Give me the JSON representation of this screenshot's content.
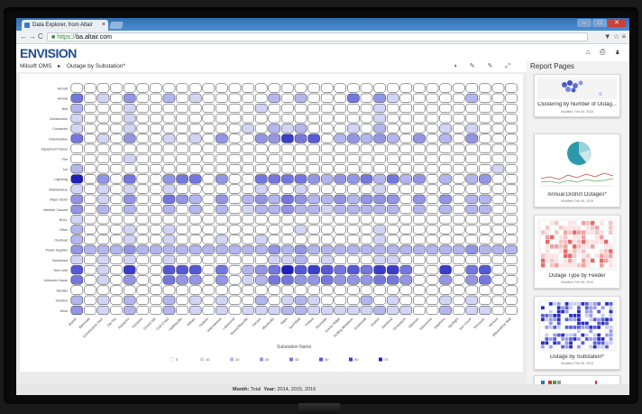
{
  "browser": {
    "tab_title": "Data Explorer, from Altair",
    "tab_close": "×",
    "url_scheme": "https://",
    "url_host": "ba.altair.com",
    "nav_back": "←",
    "nav_forward": "→",
    "nav_reload": "C",
    "addr_icons": "▼ ☆ ≡",
    "win_min": "–",
    "win_max": "□",
    "win_close": "✕"
  },
  "app": {
    "logo": "ENVISION",
    "header_icons": "⌂ ⎙ ♟"
  },
  "breadcrumb": {
    "root": "Milsoft OMS",
    "sep": "▸",
    "page": "Outage by Substation*"
  },
  "toolbar": {
    "icons": "◑ ✎ ✎ ⤢"
  },
  "chart": {
    "xlabel": "Substation Name",
    "rows": [
      "Aircraft",
      "Animal",
      "Bird",
      "Construction",
      "Contractor",
      "Deterioration",
      "Equipment Failure",
      "Fire",
      "Ice",
      "Lightning",
      "Maintenance",
      "Major Storm",
      "Member Caused",
      "NULL",
      "Other",
      "Overload",
      "Power Supplier",
      "Scheduled",
      "Tree Limb",
      "Unknown Cause",
      "Vandals",
      "Vehicles",
      "Wind"
    ],
    "cols": [
      "Baxter",
      "Bermuda",
      "Cornerstone Dam",
      "Del Rio",
      "Eastpoint",
      "Eubanks",
      "Grand Isle",
      "Gulf Coast",
      "Hallettsville",
      "Halsey",
      "Hudson",
      "International",
      "Lakewood",
      "Nunez/Maxville",
      "Horace",
      "Monticello",
      "Napa",
      "Northfield",
      "Pollard",
      "Riverside",
      "Rocky Ridge",
      "Rolling Meadows",
      "Rosebudd",
      "Ruston",
      "Sandoval",
      "Shreveport",
      "Silverton",
      "Slemmons",
      "Stephens",
      "Spotlight",
      "Sun Cover",
      "Tennyson",
      "Ventura",
      "Wauwatosa Mall"
    ],
    "legend": [
      "0",
      "10",
      "20",
      "30",
      "40",
      "50",
      "60",
      "70"
    ],
    "colors": [
      "#ffffff",
      "#d3d5f5",
      "#b4b7ee",
      "#9396e4",
      "#7478de",
      "#5559d6",
      "#3a3ecb",
      "#1d20bf"
    ]
  },
  "chart_data": {
    "type": "heatmap",
    "title": "Outage by Substation*",
    "xlabel": "Substation Name",
    "ylabel": "",
    "color_scale": [
      0,
      70
    ],
    "values": [
      [
        0,
        0,
        0,
        0,
        0,
        0,
        0,
        0,
        0,
        0,
        0,
        0,
        0,
        0,
        0,
        0,
        0,
        0,
        0,
        0,
        0,
        0,
        0,
        0,
        0,
        0,
        0,
        0,
        0,
        0,
        0,
        0,
        0,
        0
      ],
      [
        40,
        0,
        10,
        0,
        25,
        0,
        0,
        20,
        0,
        10,
        0,
        0,
        0,
        0,
        0,
        20,
        0,
        20,
        0,
        0,
        0,
        40,
        0,
        30,
        10,
        0,
        0,
        0,
        0,
        0,
        20,
        0,
        0,
        0
      ],
      [
        20,
        0,
        0,
        0,
        10,
        0,
        0,
        0,
        0,
        0,
        0,
        0,
        0,
        0,
        10,
        0,
        0,
        0,
        0,
        0,
        0,
        0,
        0,
        10,
        0,
        0,
        0,
        0,
        0,
        0,
        0,
        0,
        0,
        0
      ],
      [
        10,
        0,
        0,
        0,
        10,
        0,
        0,
        0,
        0,
        0,
        0,
        0,
        0,
        0,
        0,
        0,
        0,
        0,
        0,
        0,
        0,
        0,
        0,
        10,
        0,
        0,
        0,
        0,
        0,
        0,
        0,
        0,
        0,
        0
      ],
      [
        10,
        0,
        0,
        0,
        10,
        0,
        0,
        0,
        0,
        0,
        0,
        0,
        0,
        10,
        0,
        20,
        10,
        20,
        0,
        0,
        0,
        10,
        0,
        20,
        0,
        0,
        0,
        0,
        10,
        0,
        10,
        0,
        0,
        0
      ],
      [
        40,
        0,
        10,
        0,
        30,
        0,
        0,
        10,
        0,
        10,
        0,
        30,
        0,
        0,
        30,
        30,
        60,
        40,
        50,
        0,
        20,
        30,
        20,
        30,
        20,
        0,
        30,
        0,
        20,
        0,
        30,
        0,
        0,
        0
      ],
      [
        0,
        0,
        0,
        0,
        0,
        0,
        0,
        0,
        0,
        0,
        0,
        0,
        0,
        0,
        0,
        0,
        0,
        0,
        0,
        0,
        0,
        0,
        0,
        0,
        0,
        0,
        0,
        0,
        0,
        0,
        0,
        0,
        0,
        0
      ],
      [
        0,
        0,
        0,
        0,
        10,
        0,
        0,
        0,
        0,
        0,
        0,
        0,
        0,
        0,
        0,
        0,
        0,
        0,
        0,
        0,
        0,
        0,
        0,
        0,
        0,
        0,
        0,
        0,
        0,
        0,
        0,
        0,
        0,
        0
      ],
      [
        20,
        0,
        0,
        0,
        0,
        0,
        0,
        0,
        0,
        0,
        0,
        0,
        0,
        0,
        0,
        0,
        0,
        0,
        0,
        0,
        0,
        0,
        0,
        0,
        0,
        0,
        0,
        0,
        0,
        0,
        0,
        0,
        10,
        0
      ],
      [
        70,
        0,
        30,
        0,
        40,
        0,
        0,
        30,
        40,
        40,
        0,
        30,
        0,
        0,
        40,
        40,
        40,
        40,
        30,
        20,
        30,
        30,
        40,
        20,
        40,
        20,
        30,
        0,
        20,
        0,
        20,
        30,
        0,
        0
      ],
      [
        10,
        0,
        10,
        0,
        10,
        0,
        0,
        10,
        0,
        0,
        0,
        0,
        0,
        0,
        10,
        0,
        0,
        10,
        0,
        0,
        0,
        0,
        0,
        10,
        0,
        0,
        0,
        0,
        0,
        0,
        0,
        0,
        0,
        0
      ],
      [
        30,
        0,
        10,
        0,
        30,
        0,
        0,
        40,
        30,
        20,
        0,
        30,
        0,
        20,
        30,
        20,
        40,
        30,
        20,
        20,
        30,
        20,
        30,
        30,
        30,
        0,
        30,
        0,
        30,
        0,
        20,
        20,
        0,
        0
      ],
      [
        30,
        0,
        20,
        0,
        20,
        0,
        0,
        20,
        0,
        20,
        0,
        20,
        0,
        10,
        20,
        20,
        30,
        20,
        20,
        10,
        20,
        20,
        20,
        20,
        20,
        0,
        20,
        0,
        20,
        0,
        20,
        20,
        0,
        0
      ],
      [
        10,
        0,
        0,
        0,
        0,
        0,
        0,
        0,
        0,
        0,
        0,
        0,
        0,
        0,
        0,
        0,
        0,
        0,
        0,
        0,
        0,
        0,
        0,
        0,
        0,
        0,
        0,
        0,
        0,
        0,
        0,
        0,
        0,
        0
      ],
      [
        20,
        0,
        0,
        0,
        10,
        0,
        0,
        10,
        0,
        0,
        0,
        0,
        0,
        0,
        0,
        0,
        0,
        10,
        0,
        0,
        0,
        0,
        0,
        10,
        0,
        0,
        0,
        0,
        0,
        0,
        0,
        0,
        0,
        0
      ],
      [
        20,
        0,
        0,
        0,
        10,
        0,
        0,
        10,
        0,
        0,
        0,
        10,
        0,
        0,
        10,
        0,
        0,
        0,
        0,
        0,
        0,
        0,
        0,
        10,
        0,
        0,
        0,
        0,
        0,
        0,
        0,
        0,
        0,
        0
      ],
      [
        30,
        20,
        20,
        20,
        30,
        20,
        20,
        20,
        20,
        20,
        20,
        20,
        20,
        20,
        20,
        30,
        20,
        30,
        20,
        20,
        20,
        20,
        20,
        20,
        20,
        20,
        20,
        20,
        20,
        20,
        30,
        20,
        20,
        20
      ],
      [
        10,
        0,
        10,
        0,
        10,
        0,
        0,
        10,
        0,
        0,
        0,
        0,
        0,
        0,
        0,
        10,
        10,
        20,
        0,
        10,
        0,
        0,
        0,
        10,
        10,
        0,
        0,
        0,
        0,
        0,
        0,
        0,
        0,
        0
      ],
      [
        50,
        0,
        10,
        0,
        60,
        0,
        0,
        50,
        50,
        50,
        0,
        40,
        0,
        20,
        30,
        40,
        70,
        50,
        60,
        50,
        40,
        50,
        40,
        60,
        60,
        40,
        0,
        0,
        60,
        0,
        40,
        50,
        0,
        0
      ],
      [
        40,
        0,
        10,
        0,
        30,
        0,
        0,
        40,
        30,
        30,
        0,
        30,
        0,
        10,
        20,
        40,
        40,
        30,
        30,
        40,
        30,
        30,
        30,
        40,
        40,
        30,
        0,
        0,
        30,
        0,
        30,
        40,
        0,
        0
      ],
      [
        0,
        0,
        0,
        0,
        0,
        0,
        0,
        0,
        0,
        0,
        0,
        0,
        0,
        0,
        0,
        0,
        0,
        0,
        0,
        0,
        0,
        0,
        0,
        0,
        0,
        0,
        0,
        0,
        0,
        0,
        0,
        0,
        0,
        0
      ],
      [
        20,
        0,
        10,
        0,
        20,
        0,
        0,
        20,
        0,
        10,
        0,
        10,
        0,
        0,
        20,
        0,
        10,
        20,
        10,
        0,
        0,
        0,
        20,
        0,
        10,
        0,
        0,
        0,
        10,
        0,
        10,
        0,
        0,
        0
      ],
      [
        30,
        0,
        10,
        0,
        20,
        0,
        0,
        20,
        0,
        10,
        0,
        10,
        0,
        10,
        10,
        10,
        20,
        20,
        10,
        10,
        10,
        10,
        10,
        20,
        10,
        10,
        0,
        0,
        20,
        0,
        10,
        10,
        0,
        0
      ]
    ]
  },
  "status": {
    "month_label": "Month:",
    "month": "Total",
    "year_label": "Year:",
    "years": "2014, 2015, 2016"
  },
  "report_panel": {
    "title": "Report Pages",
    "cards": [
      {
        "title": "Clustering by Number of Outag...",
        "date": "Modified: Feb 06, 2016"
      },
      {
        "title": "Annual District Outages*",
        "date": "Modified: Feb 06, 2016"
      },
      {
        "title": "Outage Type by Feeder",
        "date": "Modified: Feb 06, 2016"
      },
      {
        "title": "Outage by Substation*",
        "date": "Modified: Feb 06, 2016"
      }
    ],
    "footer_icons": "⚙ ⌂"
  }
}
